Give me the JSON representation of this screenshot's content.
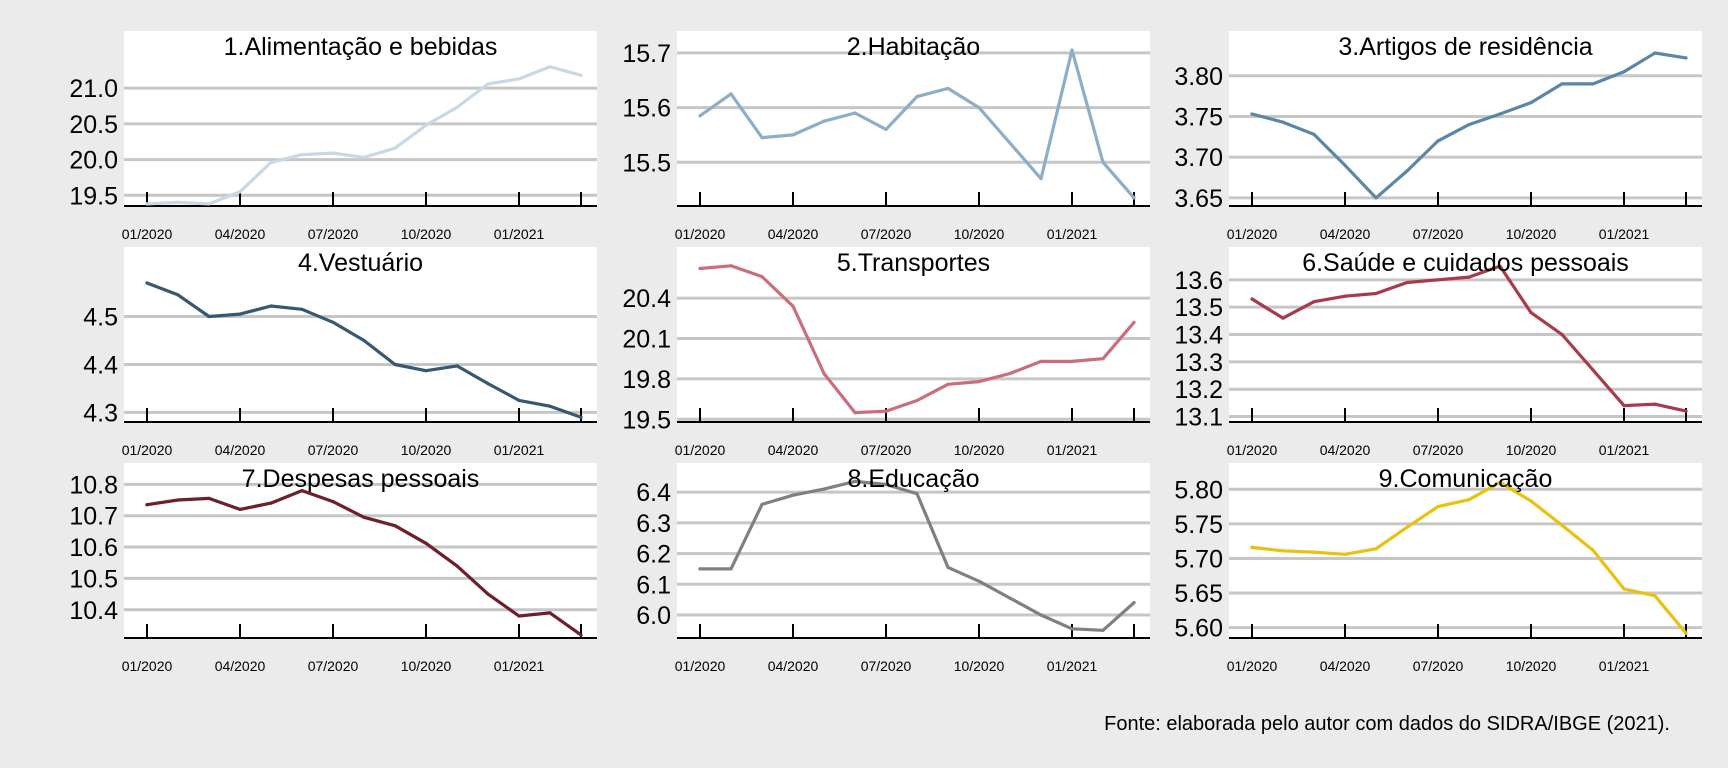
{
  "caption": "Fonte: elaborada pelo autor com dados do SIDRA/IBGE (2021).",
  "x_tick_labels": [
    "01/2020",
    "04/2020",
    "07/2020",
    "10/2020",
    "01/2021"
  ],
  "chart_data": [
    {
      "type": "line",
      "title": "1.Alimentação e bebidas",
      "color": "#c8d8e4",
      "x": [
        "01/2020",
        "02/2020",
        "03/2020",
        "04/2020",
        "05/2020",
        "06/2020",
        "07/2020",
        "08/2020",
        "09/2020",
        "10/2020",
        "11/2020",
        "12/2020",
        "01/2021",
        "02/2021",
        "03/2021"
      ],
      "values": [
        19.38,
        19.4,
        19.38,
        19.55,
        19.96,
        20.07,
        20.09,
        20.03,
        20.16,
        20.48,
        20.73,
        21.06,
        21.13,
        21.3,
        21.18
      ],
      "ylim": [
        19.35,
        21.8
      ],
      "yticks": [
        19.5,
        20.0,
        20.5,
        21.0
      ],
      "ytick_labels": [
        "19.5",
        "20.0",
        "20.5",
        "21.0"
      ]
    },
    {
      "type": "line",
      "title": "2.Habitação",
      "color": "#8daec7",
      "x": [
        "01/2020",
        "02/2020",
        "03/2020",
        "04/2020",
        "05/2020",
        "06/2020",
        "07/2020",
        "08/2020",
        "09/2020",
        "10/2020",
        "11/2020",
        "12/2020",
        "01/2021",
        "02/2021",
        "03/2021"
      ],
      "values": [
        15.585,
        15.625,
        15.545,
        15.55,
        15.575,
        15.59,
        15.56,
        15.62,
        15.635,
        15.6,
        15.535,
        15.47,
        15.705,
        15.5,
        15.435
      ],
      "ylim": [
        15.42,
        15.74
      ],
      "yticks": [
        15.5,
        15.6,
        15.7
      ],
      "ytick_labels": [
        "15.5",
        "15.6",
        "15.7"
      ]
    },
    {
      "type": "line",
      "title": "3.Artigos de residência",
      "color": "#5a86a8",
      "x": [
        "01/2020",
        "02/2020",
        "03/2020",
        "04/2020",
        "05/2020",
        "06/2020",
        "07/2020",
        "08/2020",
        "09/2020",
        "10/2020",
        "11/2020",
        "12/2020",
        "01/2021",
        "02/2021",
        "03/2021"
      ],
      "values": [
        3.753,
        3.743,
        3.728,
        3.69,
        3.65,
        3.683,
        3.72,
        3.74,
        3.753,
        3.767,
        3.79,
        3.79,
        3.805,
        3.828,
        3.822
      ],
      "ylim": [
        3.64,
        3.855
      ],
      "yticks": [
        3.65,
        3.7,
        3.75,
        3.8
      ],
      "ytick_labels": [
        "3.65",
        "3.70",
        "3.75",
        "3.80"
      ]
    },
    {
      "type": "line",
      "title": "4.Vestuário",
      "color": "#365873",
      "x": [
        "01/2020",
        "02/2020",
        "03/2020",
        "04/2020",
        "05/2020",
        "06/2020",
        "07/2020",
        "08/2020",
        "09/2020",
        "10/2020",
        "11/2020",
        "12/2020",
        "01/2021",
        "02/2021",
        "03/2021"
      ],
      "values": [
        4.57,
        4.545,
        4.5,
        4.505,
        4.522,
        4.515,
        4.488,
        4.45,
        4.4,
        4.387,
        4.397,
        4.36,
        4.325,
        4.313,
        4.29
      ],
      "ylim": [
        4.28,
        4.645
      ],
      "yticks": [
        4.3,
        4.4,
        4.5
      ],
      "ytick_labels": [
        "4.3",
        "4.4",
        "4.5"
      ]
    },
    {
      "type": "line",
      "title": "5.Transportes",
      "color": "#c96e7a",
      "x": [
        "01/2020",
        "02/2020",
        "03/2020",
        "04/2020",
        "05/2020",
        "06/2020",
        "07/2020",
        "08/2020",
        "09/2020",
        "10/2020",
        "11/2020",
        "12/2020",
        "01/2021",
        "02/2021",
        "03/2021"
      ],
      "values": [
        20.62,
        20.64,
        20.56,
        20.34,
        19.84,
        19.55,
        19.56,
        19.64,
        19.76,
        19.78,
        19.84,
        19.93,
        19.93,
        19.95,
        20.22
      ],
      "ylim": [
        19.48,
        20.78
      ],
      "yticks": [
        19.5,
        19.8,
        20.1,
        20.4
      ],
      "ytick_labels": [
        "19.5",
        "19.8",
        "20.1",
        "20.4"
      ]
    },
    {
      "type": "line",
      "title": "6.Saúde e cuidados pessoais",
      "color": "#a83a4a",
      "x": [
        "01/2020",
        "02/2020",
        "03/2020",
        "04/2020",
        "05/2020",
        "06/2020",
        "07/2020",
        "08/2020",
        "09/2020",
        "10/2020",
        "11/2020",
        "12/2020",
        "01/2021",
        "02/2021",
        "03/2021"
      ],
      "values": [
        13.53,
        13.46,
        13.52,
        13.54,
        13.55,
        13.59,
        13.6,
        13.61,
        13.65,
        13.48,
        13.4,
        13.27,
        13.14,
        13.145,
        13.12
      ],
      "ylim": [
        13.08,
        13.72
      ],
      "yticks": [
        13.1,
        13.2,
        13.3,
        13.4,
        13.5,
        13.6
      ],
      "ytick_labels": [
        "13.1",
        "13.2",
        "13.3",
        "13.4",
        "13.5",
        "13.6"
      ]
    },
    {
      "type": "line",
      "title": "7.Despesas pessoais",
      "color": "#6e1f2a",
      "x": [
        "01/2020",
        "02/2020",
        "03/2020",
        "04/2020",
        "05/2020",
        "06/2020",
        "07/2020",
        "08/2020",
        "09/2020",
        "10/2020",
        "11/2020",
        "12/2020",
        "01/2021",
        "02/2021",
        "03/2021"
      ],
      "values": [
        10.735,
        10.75,
        10.755,
        10.72,
        10.74,
        10.78,
        10.745,
        10.695,
        10.668,
        10.612,
        10.54,
        10.45,
        10.38,
        10.39,
        10.32
      ],
      "ylim": [
        10.31,
        10.868
      ],
      "yticks": [
        10.4,
        10.5,
        10.6,
        10.7,
        10.8
      ],
      "ytick_labels": [
        "10.4",
        "10.5",
        "10.6",
        "10.7",
        "10.8"
      ]
    },
    {
      "type": "line",
      "title": "8.Educação",
      "color": "#808080",
      "x": [
        "01/2020",
        "02/2020",
        "03/2020",
        "04/2020",
        "05/2020",
        "06/2020",
        "07/2020",
        "08/2020",
        "09/2020",
        "10/2020",
        "11/2020",
        "12/2020",
        "01/2021",
        "02/2021",
        "03/2021"
      ],
      "values": [
        6.15,
        6.15,
        6.36,
        6.39,
        6.41,
        6.435,
        6.425,
        6.395,
        6.155,
        6.11,
        6.055,
        6.0,
        5.955,
        5.95,
        6.04
      ],
      "ylim": [
        5.925,
        6.495
      ],
      "yticks": [
        6.0,
        6.1,
        6.2,
        6.3,
        6.4
      ],
      "ytick_labels": [
        "6.0",
        "6.1",
        "6.2",
        "6.3",
        "6.4"
      ]
    },
    {
      "type": "line",
      "title": "9.Comunicação",
      "color": "#e8c20e",
      "x": [
        "01/2020",
        "02/2020",
        "03/2020",
        "04/2020",
        "05/2020",
        "06/2020",
        "07/2020",
        "08/2020",
        "09/2020",
        "10/2020",
        "11/2020",
        "12/2020",
        "01/2021",
        "02/2021",
        "03/2021"
      ],
      "values": [
        5.716,
        5.711,
        5.709,
        5.706,
        5.714,
        5.745,
        5.775,
        5.785,
        5.81,
        5.783,
        5.748,
        5.712,
        5.656,
        5.646,
        5.592
      ],
      "ylim": [
        5.585,
        5.838
      ],
      "yticks": [
        5.6,
        5.65,
        5.7,
        5.75,
        5.8
      ],
      "ytick_labels": [
        "5.60",
        "5.65",
        "5.70",
        "5.75",
        "5.80"
      ]
    }
  ]
}
